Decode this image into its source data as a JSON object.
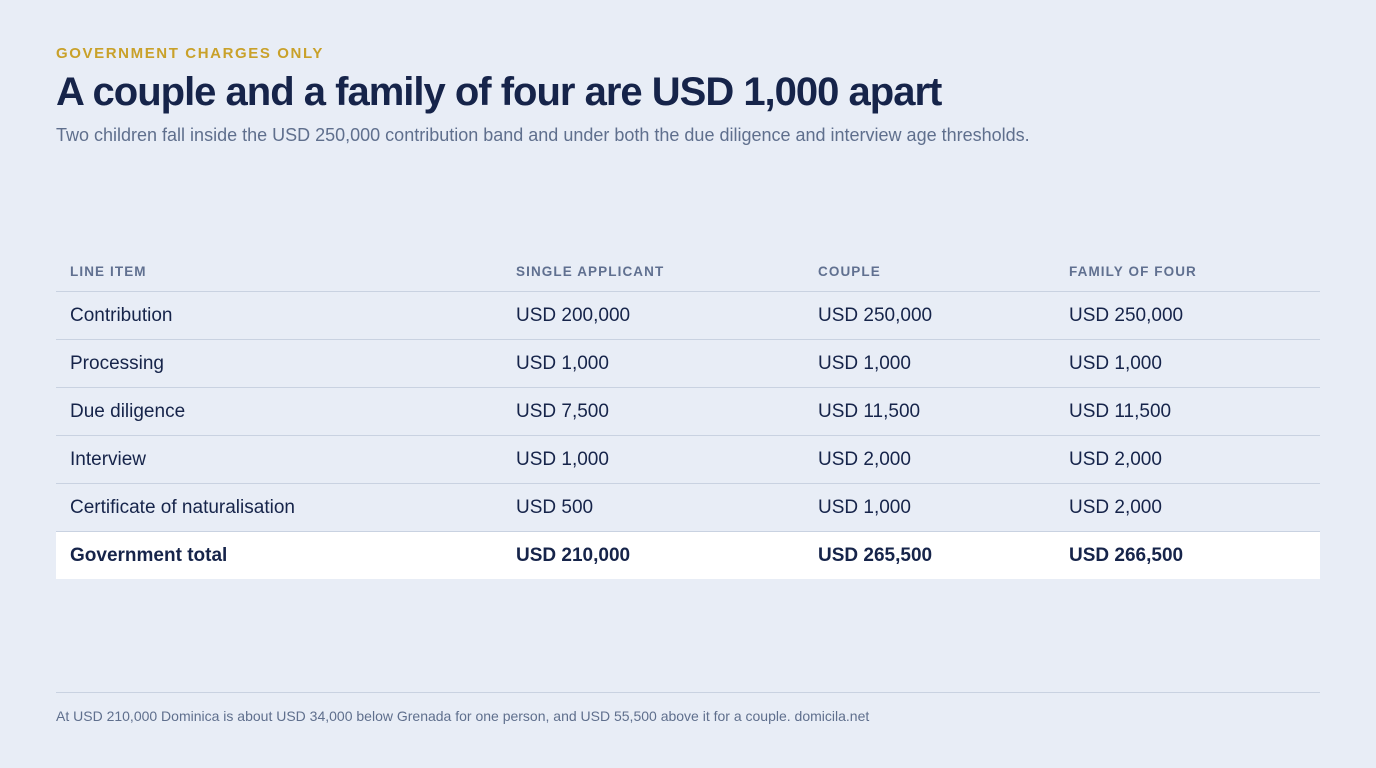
{
  "eyebrow": "GOVERNMENT CHARGES ONLY",
  "headline": "A couple and a family of four are USD 1,000 apart",
  "subtitle": "Two children fall inside the USD 250,000 contribution band and under both the due diligence and interview age thresholds.",
  "table": {
    "headers": [
      "LINE ITEM",
      "SINGLE APPLICANT",
      "COUPLE",
      "FAMILY OF FOUR"
    ],
    "rows": [
      [
        "Contribution",
        "USD 200,000",
        "USD 250,000",
        "USD 250,000"
      ],
      [
        "Processing",
        "USD 1,000",
        "USD 1,000",
        "USD 1,000"
      ],
      [
        "Due diligence",
        "USD 7,500",
        "USD 11,500",
        "USD 11,500"
      ],
      [
        "Interview",
        "USD 1,000",
        "USD 2,000",
        "USD 2,000"
      ],
      [
        "Certificate of naturalisation",
        "USD 500",
        "USD 1,000",
        "USD 2,000"
      ]
    ],
    "total": [
      "Government total",
      "USD 210,000",
      "USD 265,500",
      "USD 266,500"
    ]
  },
  "footnote": "At USD 210,000 Dominica is about USD 34,000 below Grenada for one person, and USD 55,500 above it for a couple. domicila.net",
  "colors": {
    "background": "#e8edf6",
    "accent": "#c9a12a",
    "text": "#16244a",
    "muted": "#5f6f8d",
    "total_row": "#ffffff"
  }
}
